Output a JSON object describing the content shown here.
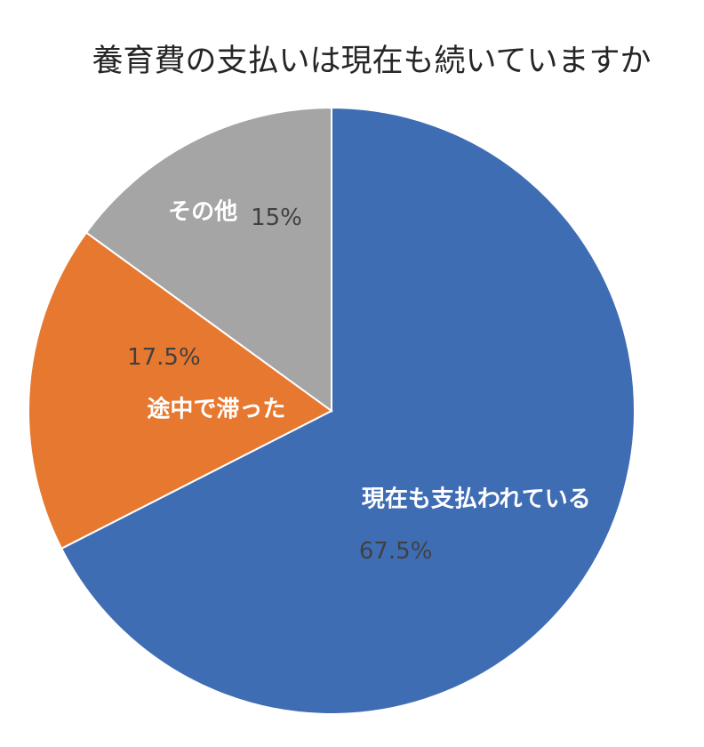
{
  "chart_data": {
    "type": "pie",
    "title": "養育費の支払いは現在も続いていますか",
    "categories": [
      "現在も支払われている",
      "途中で滞った",
      "その他"
    ],
    "values": [
      67.5,
      17.5,
      15
    ],
    "value_labels": [
      "67.5%",
      "17.5%",
      "15%"
    ],
    "colors": [
      "#3f6db4",
      "#e6782f",
      "#a5a5a5"
    ],
    "start_angle": "12 o'clock",
    "direction": "clockwise",
    "legend": "none",
    "data_labels": "inside"
  }
}
